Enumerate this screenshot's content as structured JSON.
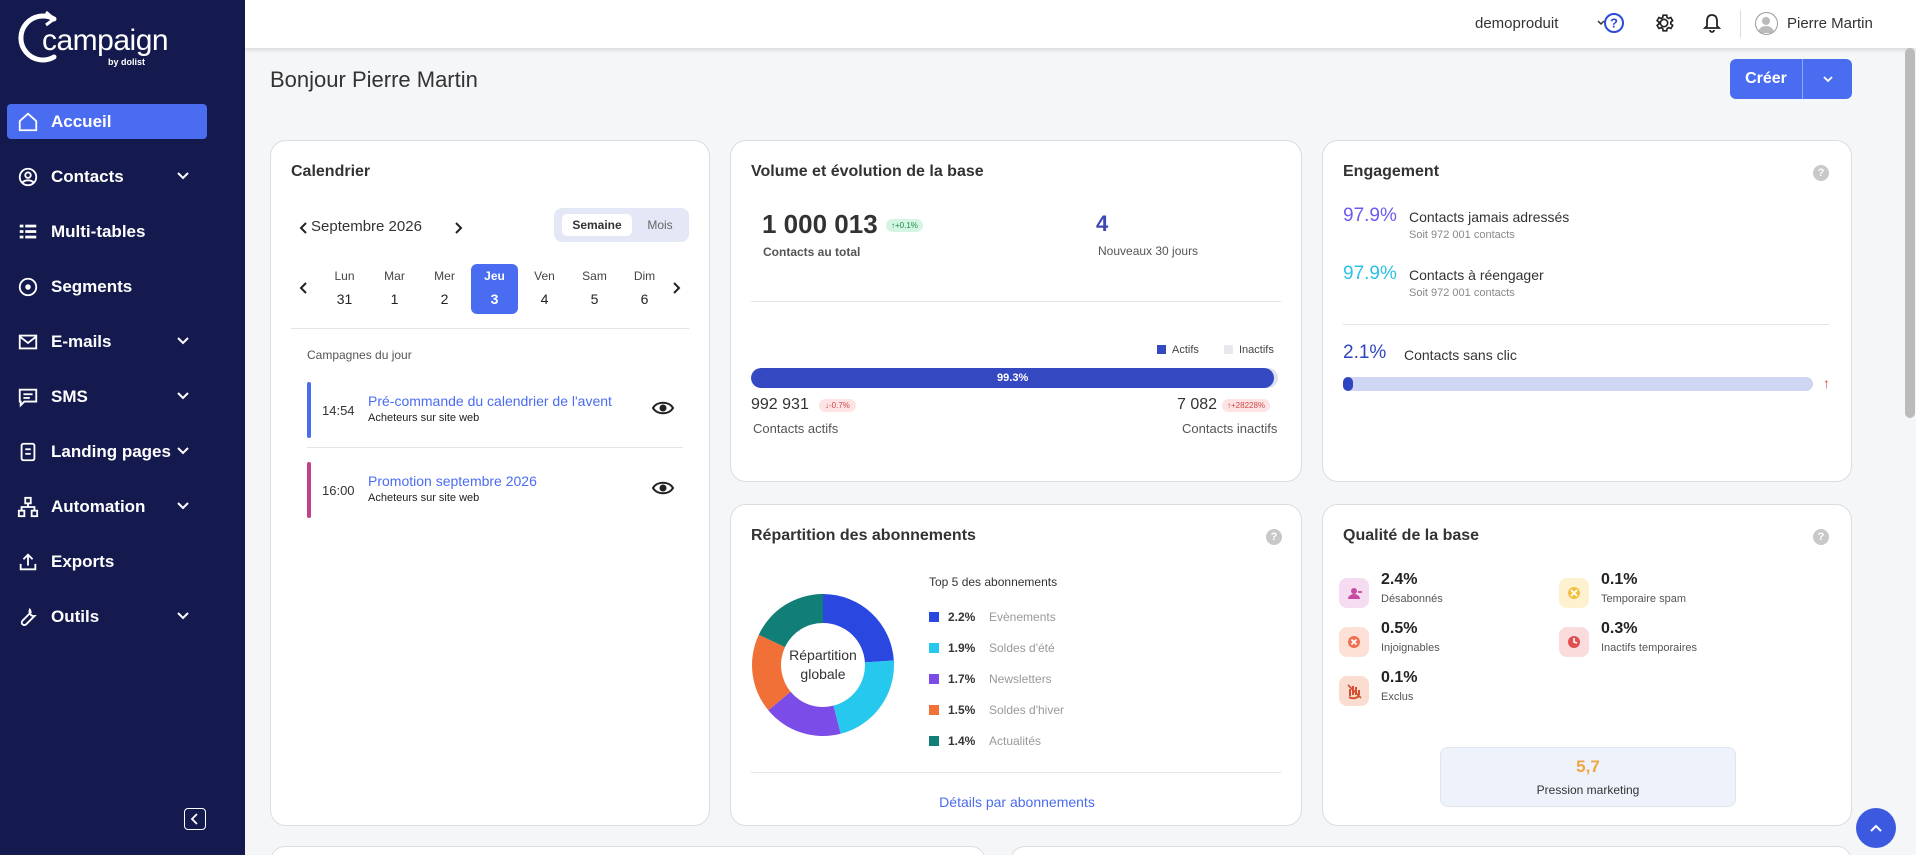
{
  "brand": {
    "name": "campaign",
    "by": "by dolist"
  },
  "sidebar": {
    "items": [
      {
        "label": "Accueil",
        "icon": "home-icon",
        "active": true,
        "expandable": false
      },
      {
        "label": "Contacts",
        "icon": "user-circle-icon",
        "expandable": true
      },
      {
        "label": "Multi-tables",
        "icon": "list-icon",
        "expandable": false
      },
      {
        "label": "Segments",
        "icon": "target-icon",
        "expandable": false
      },
      {
        "label": "E-mails",
        "icon": "mail-icon",
        "expandable": true
      },
      {
        "label": "SMS",
        "icon": "chat-icon",
        "expandable": true
      },
      {
        "label": "Landing pages",
        "icon": "page-icon",
        "expandable": true
      },
      {
        "label": "Automation",
        "icon": "flow-icon",
        "expandable": true
      },
      {
        "label": "Exports",
        "icon": "upload-icon",
        "expandable": false
      },
      {
        "label": "Outils",
        "icon": "wrench-icon",
        "expandable": true
      }
    ]
  },
  "topbar": {
    "org": "demoproduit",
    "user": "Pierre Martin"
  },
  "header": {
    "greeting": "Bonjour Pierre Martin",
    "create_label": "Créer"
  },
  "calendar": {
    "title": "Calendrier",
    "month": "Septembre 2026",
    "view_week": "Semaine",
    "view_month": "Mois",
    "days": [
      {
        "name": "Lun",
        "num": "31"
      },
      {
        "name": "Mar",
        "num": "1"
      },
      {
        "name": "Mer",
        "num": "2"
      },
      {
        "name": "Jeu",
        "num": "3",
        "selected": true
      },
      {
        "name": "Ven",
        "num": "4"
      },
      {
        "name": "Sam",
        "num": "5"
      },
      {
        "name": "Dim",
        "num": "6"
      }
    ],
    "subtitle": "Campagnes du jour",
    "campaigns": [
      {
        "time": "14:54",
        "name": "Pré-commande du calendrier de l'avent",
        "audience": "Acheteurs sur site web",
        "color": "#4a6cf0"
      },
      {
        "time": "16:00",
        "name": "Promotion septembre 2026",
        "audience": "Acheteurs sur site web",
        "color": "#c2418a"
      }
    ]
  },
  "volume": {
    "title": "Volume et évolution de la base",
    "total": "1 000 013",
    "total_badge": "↑+0.1%",
    "total_label": "Contacts au total",
    "new_count": "4",
    "new_label": "Nouveaux 30 jours",
    "legend_active": "Actifs",
    "legend_inactive": "Inactifs",
    "active_pct_label": "99.3%",
    "active_fraction": 0.993,
    "active_count": "992 931",
    "active_badge": "↓-0.7%",
    "active_label": "Contacts actifs",
    "inactive_count": "7 082",
    "inactive_badge": "↑+28228%",
    "inactive_label": "Contacts inactifs",
    "colors": {
      "active": "#3448c2",
      "inactive": "#e8e8ec"
    }
  },
  "engagement": {
    "title": "Engagement",
    "items": [
      {
        "pct": "97.9%",
        "label": "Contacts jamais adressés",
        "sub": "Soit 972 001 contacts",
        "color": "#6a5cf0"
      },
      {
        "pct": "97.9%",
        "label": "Contacts à réengager",
        "sub": "Soit 972 001 contacts",
        "color": "#2ec0e6"
      }
    ],
    "noclick_pct": "2.1%",
    "noclick_label": "Contacts sans clic",
    "noclick_fraction": 0.021,
    "trend_arrow": "↑"
  },
  "repartition": {
    "title": "Répartition des abonnements",
    "center_line1": "Répartition",
    "center_line2": "globale",
    "top_label": "Top 5 des abonnements",
    "link": "Détails par abonnements",
    "items": [
      {
        "value": "2.2%",
        "name": "Evènements",
        "color": "#2a48e0",
        "share": 24
      },
      {
        "value": "1.9%",
        "name": "Soldes d'été",
        "color": "#27c8ee",
        "share": 22
      },
      {
        "value": "1.7%",
        "name": "Newsletters",
        "color": "#7b4ce8",
        "share": 18
      },
      {
        "value": "1.5%",
        "name": "Soldes d'hiver",
        "color": "#f07038",
        "share": 18
      },
      {
        "value": "1.4%",
        "name": "Actualités",
        "color": "#117e78",
        "share": 18
      }
    ]
  },
  "quality": {
    "title": "Qualité de la base",
    "items": [
      {
        "value": "2.4%",
        "label": "Désabonnés",
        "icon": "user-minus-icon",
        "bg": "#f6dcf0",
        "fg": "#c44aa4"
      },
      {
        "value": "0.1%",
        "label": "Temporaire spam",
        "icon": "spam-icon",
        "bg": "#fdf1cf",
        "fg": "#f0c040"
      },
      {
        "value": "0.5%",
        "label": "Injoignables",
        "icon": "error-icon",
        "bg": "#fde0d6",
        "fg": "#f07050"
      },
      {
        "value": "0.3%",
        "label": "Inactifs temporaires",
        "icon": "clock-icon",
        "bg": "#fbdcdc",
        "fg": "#e05050"
      },
      {
        "value": "0.1%",
        "label": "Exclus",
        "icon": "hand-icon",
        "bg": "#fbdcd0",
        "fg": "#d55030"
      }
    ],
    "pressure_value": "5,7",
    "pressure_label": "Pression marketing"
  }
}
